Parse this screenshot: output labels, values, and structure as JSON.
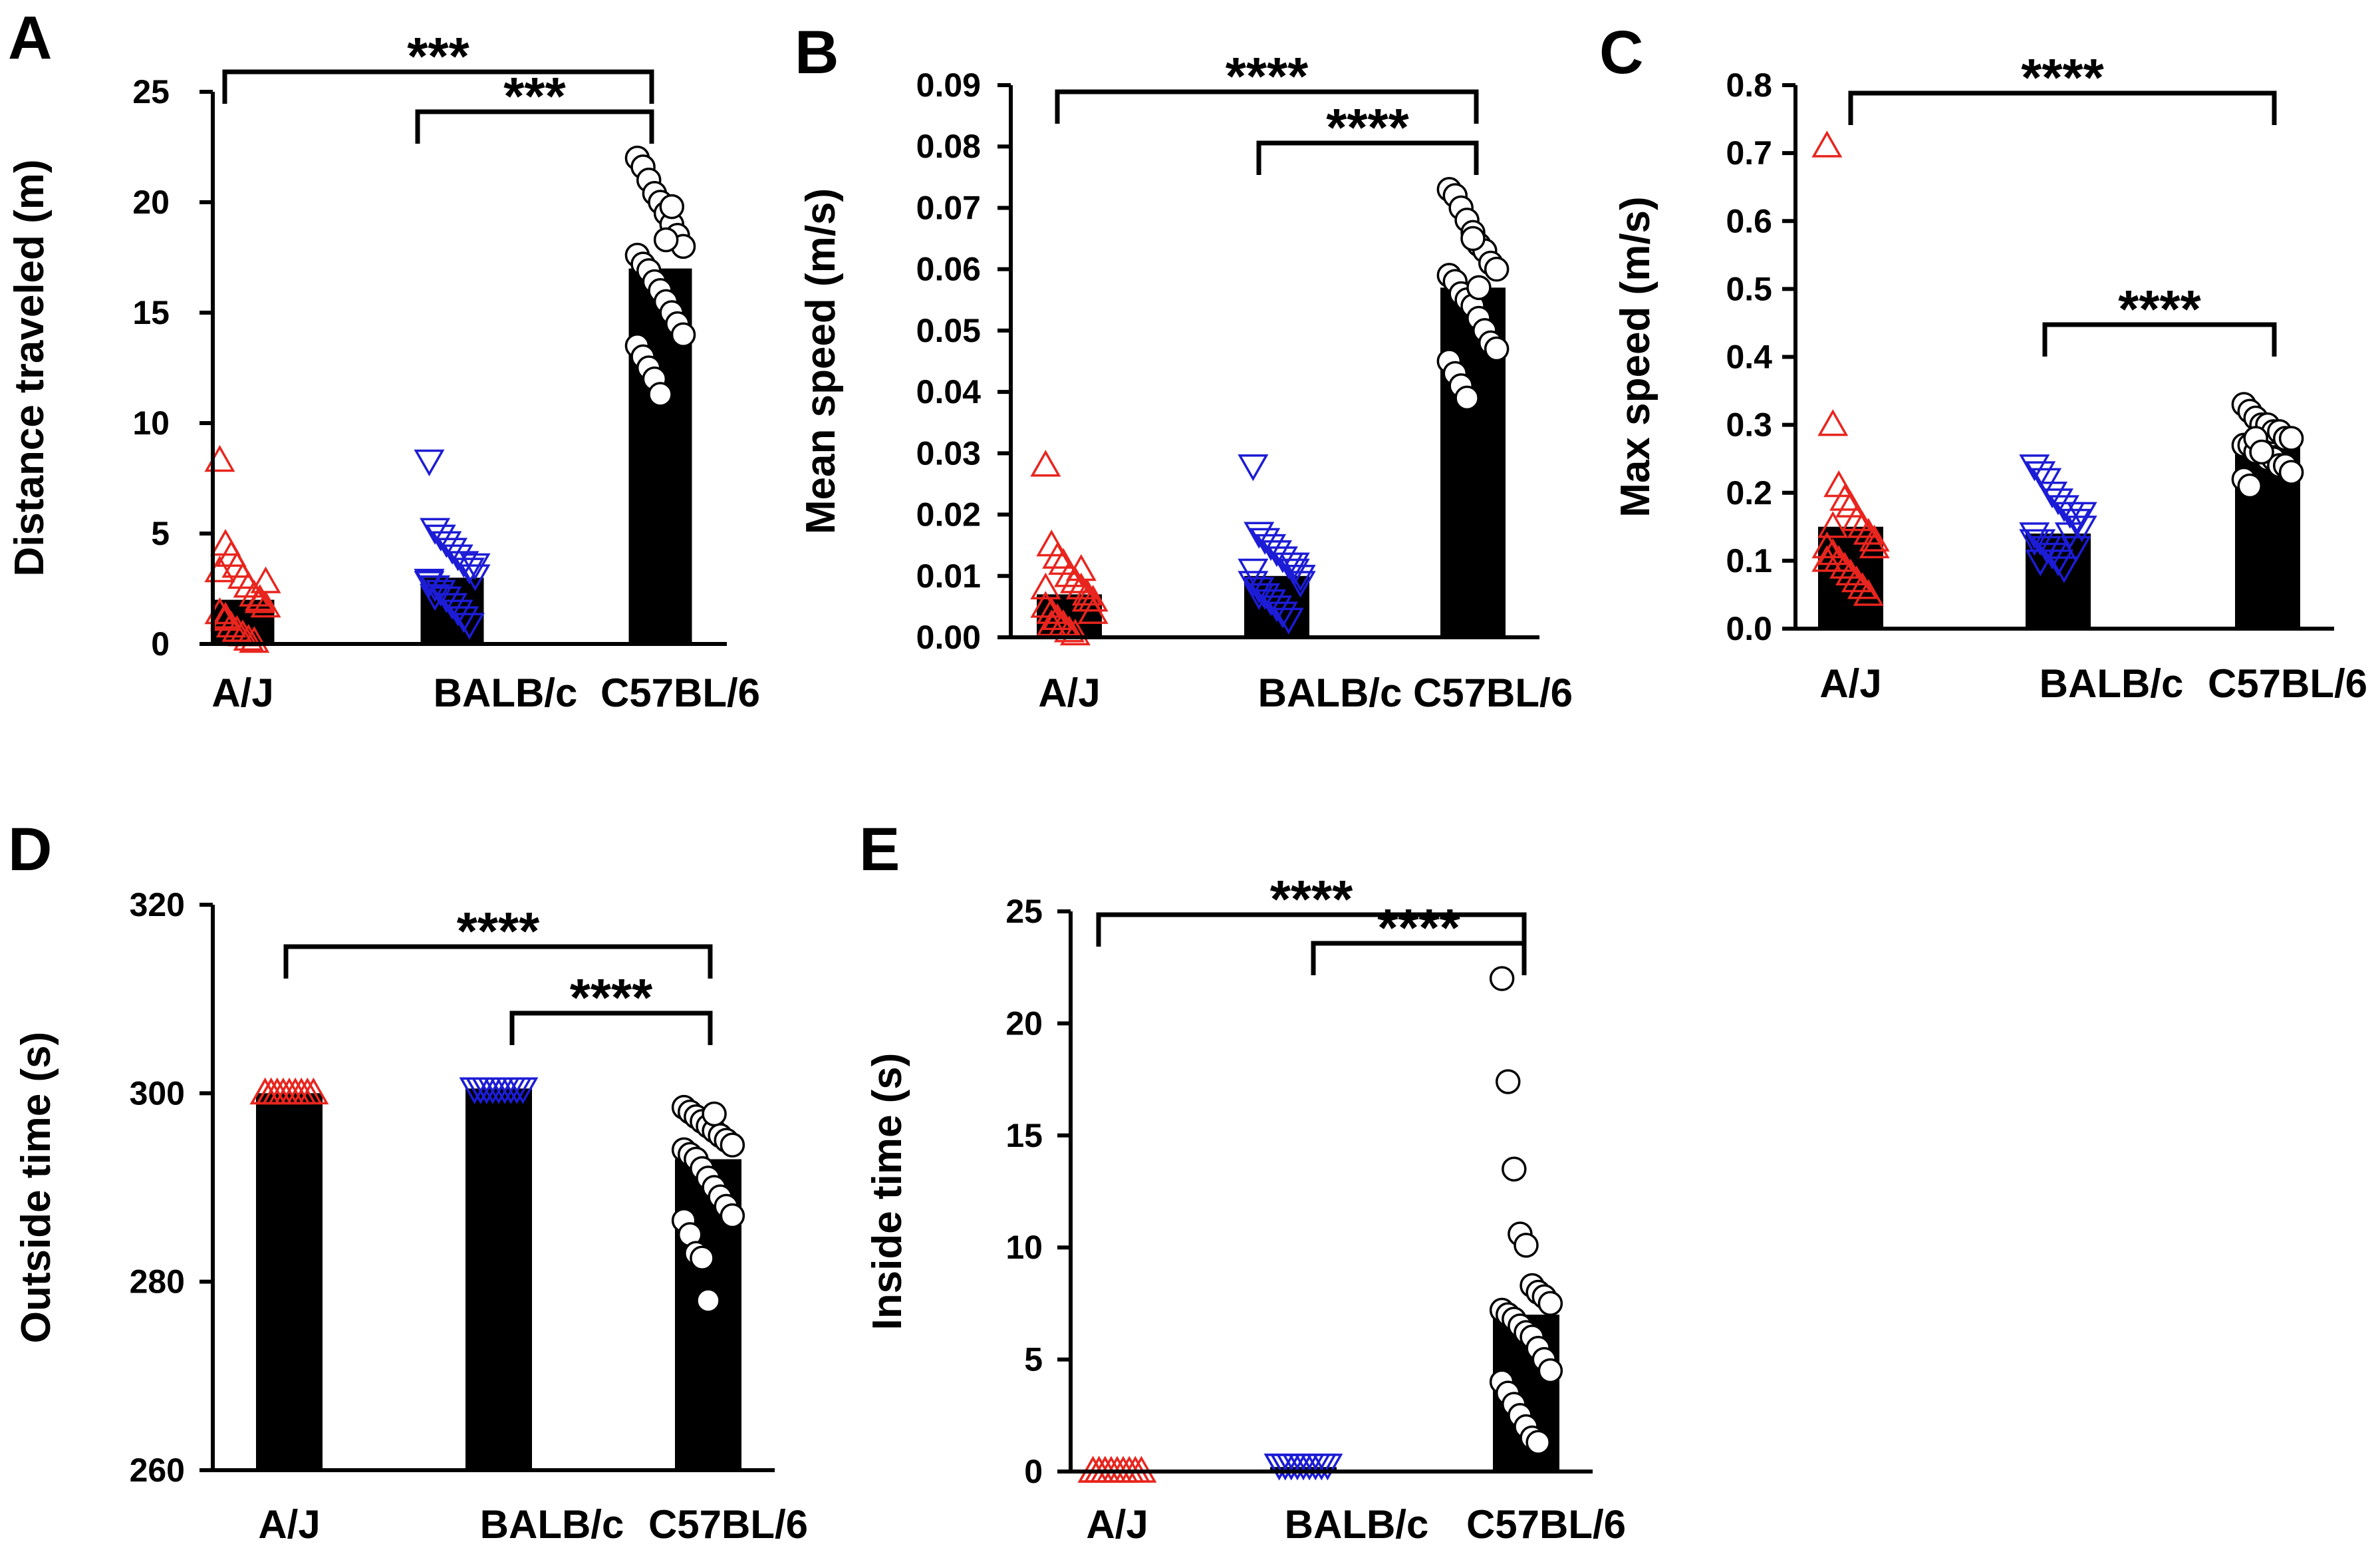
{
  "figure": {
    "background": "#ffffff",
    "bar_color": "#000000"
  },
  "groups": {
    "A/J": {
      "marker": "triangle-up",
      "color": "#e8251e"
    },
    "BALB/c": {
      "marker": "triangle-down",
      "color": "#1c1cd6"
    },
    "C57BL/6": {
      "marker": "circle",
      "color": "#000000"
    }
  },
  "chart_data": [
    {
      "panel": "A",
      "type": "bar",
      "ylabel": "Distance traveled (m)",
      "ylim": [
        0,
        25
      ],
      "yticks": [
        0,
        5,
        10,
        15,
        20,
        25
      ],
      "tick_labels": [
        "0",
        "5",
        "10",
        "15",
        "20",
        "25"
      ],
      "categories": [
        "A/J",
        "BALB/c",
        "C57BL/6"
      ],
      "values": [
        2.0,
        3.0,
        17.0
      ],
      "points": [
        [
          8.3,
          4.5,
          4.0,
          3.5,
          3.0,
          2.6,
          2.2,
          2.0,
          1.7,
          1.4,
          1.1,
          0.8,
          0.6,
          0.4,
          0.2,
          0.1,
          1.9,
          2.8,
          3.3,
          1.2
        ],
        [
          8.3,
          5.2,
          4.9,
          4.6,
          4.3,
          4.0,
          3.7,
          3.4,
          3.1,
          2.9,
          2.6,
          2.4,
          2.1,
          1.8,
          1.5,
          1.2,
          0.9,
          3.6,
          2.8,
          2.2
        ],
        [
          22.0,
          21.6,
          21.0,
          20.4,
          20.0,
          19.5,
          19.0,
          18.5,
          18.0,
          17.6,
          17.2,
          16.9,
          16.4,
          16.0,
          15.5,
          15.0,
          14.5,
          14.0,
          13.5,
          13.0,
          12.5,
          12.0,
          11.3,
          18.3,
          19.8
        ]
      ],
      "comparisons": [
        {
          "from": "A/J",
          "to": "C57BL/6",
          "label": "***"
        },
        {
          "from": "BALB/c",
          "to": "C57BL/6",
          "label": "***"
        }
      ]
    },
    {
      "panel": "B",
      "type": "bar",
      "ylabel": "Mean speed (m/s)",
      "ylim": [
        0,
        0.09
      ],
      "yticks": [
        0,
        0.01,
        0.02,
        0.03,
        0.04,
        0.05,
        0.06,
        0.07,
        0.08,
        0.09
      ],
      "tick_labels": [
        "0.00",
        "0.01",
        "0.02",
        "0.03",
        "0.04",
        "0.05",
        "0.06",
        "0.07",
        "0.08",
        "0.09"
      ],
      "categories": [
        "A/J",
        "BALB/c",
        "C57BL/6"
      ],
      "values": [
        0.007,
        0.01,
        0.057
      ],
      "points": [
        [
          0.028,
          0.015,
          0.013,
          0.012,
          0.01,
          0.009,
          0.008,
          0.007,
          0.006,
          0.005,
          0.004,
          0.003,
          0.002,
          0.001,
          0.0005,
          0.011,
          0.006,
          0.004,
          0.008,
          0.002
        ],
        [
          0.028,
          0.017,
          0.016,
          0.015,
          0.014,
          0.013,
          0.012,
          0.011,
          0.01,
          0.009,
          0.008,
          0.007,
          0.006,
          0.005,
          0.004,
          0.003,
          0.012,
          0.009,
          0.011,
          0.007
        ],
        [
          0.073,
          0.072,
          0.07,
          0.068,
          0.066,
          0.064,
          0.063,
          0.061,
          0.06,
          0.059,
          0.058,
          0.056,
          0.055,
          0.054,
          0.052,
          0.05,
          0.048,
          0.047,
          0.045,
          0.043,
          0.041,
          0.039,
          0.065,
          0.057
        ]
      ],
      "comparisons": [
        {
          "from": "A/J",
          "to": "C57BL/6",
          "label": "****"
        },
        {
          "from": "BALB/c",
          "to": "C57BL/6",
          "label": "****"
        }
      ]
    },
    {
      "panel": "C",
      "type": "bar",
      "ylabel": "Max speed (m/s)",
      "ylim": [
        0,
        0.8
      ],
      "yticks": [
        0,
        0.1,
        0.2,
        0.3,
        0.4,
        0.5,
        0.6,
        0.7,
        0.8
      ],
      "tick_labels": [
        "0.0",
        "0.1",
        "0.2",
        "0.3",
        "0.4",
        "0.5",
        "0.6",
        "0.7",
        "0.8"
      ],
      "categories": [
        "A/J",
        "BALB/c",
        "C57BL/6"
      ],
      "values": [
        0.15,
        0.14,
        0.27
      ],
      "points": [
        [
          0.71,
          0.3,
          0.21,
          0.19,
          0.18,
          0.16,
          0.15,
          0.14,
          0.13,
          0.12,
          0.11,
          0.1,
          0.09,
          0.08,
          0.07,
          0.06,
          0.05,
          0.12,
          0.1,
          0.15
        ],
        [
          0.24,
          0.23,
          0.22,
          0.2,
          0.19,
          0.18,
          0.17,
          0.16,
          0.15,
          0.14,
          0.13,
          0.12,
          0.11,
          0.1,
          0.09,
          0.14,
          0.12,
          0.17,
          0.13,
          0.1
        ],
        [
          0.33,
          0.32,
          0.31,
          0.3,
          0.3,
          0.29,
          0.29,
          0.28,
          0.28,
          0.27,
          0.27,
          0.26,
          0.26,
          0.25,
          0.25,
          0.24,
          0.24,
          0.23,
          0.22,
          0.21,
          0.28,
          0.26
        ]
      ],
      "comparisons": [
        {
          "from": "A/J",
          "to": "C57BL/6",
          "label": "****"
        },
        {
          "from": "BALB/c",
          "to": "C57BL/6",
          "label": "****"
        }
      ]
    },
    {
      "panel": "D",
      "type": "bar",
      "ylabel": "Outside time (s)",
      "ylim": [
        260,
        320
      ],
      "yticks": [
        260,
        280,
        300,
        320
      ],
      "tick_labels": [
        "260",
        "280",
        "300",
        "320"
      ],
      "categories": [
        "A/J",
        "BALB/c",
        "C57BL/6"
      ],
      "values": [
        300.0,
        300.5,
        293.0
      ],
      "points": [
        [
          300.0,
          300.0,
          300.0,
          300.0,
          300.0,
          300.0,
          300.0,
          300.0,
          300.0,
          300.0,
          300.0,
          300.0
        ],
        [
          300.5,
          300.5,
          300.5,
          300.5,
          300.5,
          300.5,
          300.5,
          300.5,
          300.5,
          300.5,
          300.5,
          300.5
        ],
        [
          298.5,
          298.0,
          297.5,
          297.0,
          296.5,
          296.0,
          295.5,
          295.0,
          294.5,
          294.0,
          293.5,
          293.0,
          292.0,
          291.0,
          290.0,
          289.0,
          288.0,
          287.0,
          286.5,
          285.0,
          283.0,
          282.5,
          278.0,
          297.8
        ]
      ],
      "comparisons": [
        {
          "from": "A/J",
          "to": "C57BL/6",
          "label": "****"
        },
        {
          "from": "BALB/c",
          "to": "C57BL/6",
          "label": "****"
        }
      ]
    },
    {
      "panel": "E",
      "type": "bar",
      "ylabel": "Inside time (s)",
      "ylim": [
        0,
        25
      ],
      "yticks": [
        0,
        5,
        10,
        15,
        20,
        25
      ],
      "tick_labels": [
        "0",
        "5",
        "10",
        "15",
        "20",
        "25"
      ],
      "categories": [
        "A/J",
        "BALB/c",
        "C57BL/6"
      ],
      "values": [
        0.0,
        0.2,
        7.0
      ],
      "points": [
        [
          0.0,
          0.0,
          0.0,
          0.0,
          0.0,
          0.0,
          0.0,
          0.0,
          0.0,
          0.0,
          0.0,
          0.0
        ],
        [
          0.3,
          0.3,
          0.3,
          0.3,
          0.3,
          0.3,
          0.3,
          0.3,
          0.3,
          0.3,
          0.3,
          0.3
        ],
        [
          22.0,
          17.4,
          13.5,
          10.6,
          10.1,
          8.3,
          8.0,
          7.8,
          7.5,
          7.2,
          7.0,
          6.8,
          6.5,
          6.2,
          6.0,
          5.5,
          5.0,
          4.5,
          4.0,
          3.5,
          3.0,
          2.5,
          2.0,
          1.5,
          1.3
        ]
      ],
      "comparisons": [
        {
          "from": "A/J",
          "to": "C57BL/6",
          "label": "****"
        },
        {
          "from": "BALB/c",
          "to": "C57BL/6",
          "label": "****"
        }
      ]
    }
  ]
}
